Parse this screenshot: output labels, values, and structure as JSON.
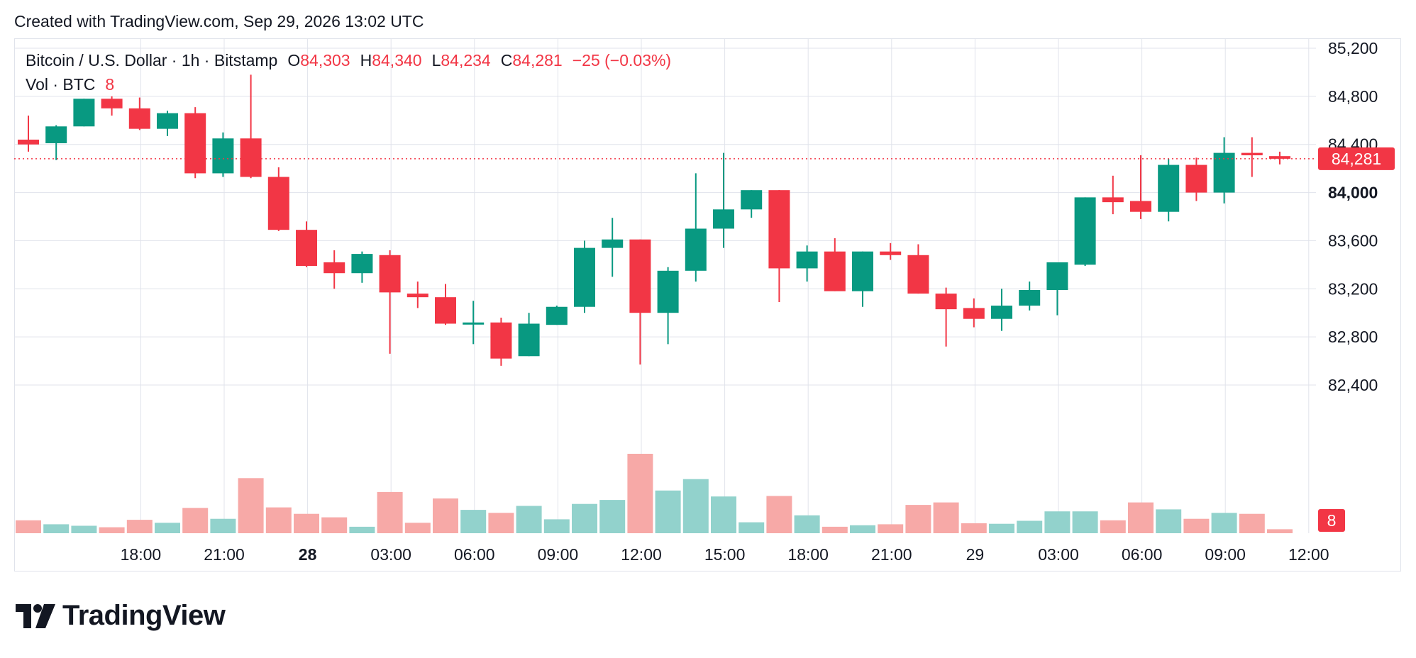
{
  "header": {
    "created_with": "Created with TradingView.com, Sep 29, 2026 13:02 UTC"
  },
  "legend": {
    "symbol": "Bitcoin / U.S. Dollar · 1h · Bitstamp",
    "o_label": "O",
    "open": "84,303",
    "h_label": "H",
    "high": "84,340",
    "l_label": "L",
    "low": "84,234",
    "c_label": "C",
    "close": "84,281",
    "change": "−25 (−0.03%)",
    "vol_label": "Vol · BTC",
    "vol_value": "8"
  },
  "price_tag": "84,281",
  "vol_tag": "8",
  "logo": {
    "text": "TradingView"
  },
  "colors": {
    "up": "#089981",
    "down": "#f23645",
    "up_vol": "#92d2cc",
    "down_vol": "#f7a9a7",
    "grid": "#e0e3eb"
  },
  "chart_data": {
    "type": "candlestick",
    "title": "Bitcoin / U.S. Dollar · 1h · Bitstamp",
    "y_range": [
      82300,
      85250
    ],
    "y_ticks": [
      "85,200",
      "84,800",
      "84,400",
      "84,000",
      "83,600",
      "83,200",
      "82,800",
      "82,400"
    ],
    "y_tick_values": [
      85200,
      84800,
      84400,
      84000,
      83600,
      83200,
      82800,
      82400
    ],
    "bold_tick": "84,000",
    "x_ticks": [
      {
        "index": 2,
        "label": "18:00",
        "bold": false
      },
      {
        "index": 5,
        "label": "21:00",
        "bold": false
      },
      {
        "index": 8,
        "label": "28",
        "bold": true
      },
      {
        "index": 11,
        "label": "03:00",
        "bold": false
      },
      {
        "index": 14,
        "label": "06:00",
        "bold": false
      },
      {
        "index": 17,
        "label": "09:00",
        "bold": false
      },
      {
        "index": 20,
        "label": "12:00",
        "bold": false
      },
      {
        "index": 23,
        "label": "15:00",
        "bold": false
      },
      {
        "index": 26,
        "label": "18:00",
        "bold": false
      },
      {
        "index": 29,
        "label": "21:00",
        "bold": false
      },
      {
        "index": 32,
        "label": "29",
        "bold": false
      },
      {
        "index": 35,
        "label": "03:00",
        "bold": false
      },
      {
        "index": 38,
        "label": "06:00",
        "bold": false
      },
      {
        "index": 41,
        "label": "09:00",
        "bold": false
      },
      {
        "index": 44,
        "label": "12:00",
        "bold": false
      }
    ],
    "last_price": 84281,
    "candles": [
      {
        "o": 84440,
        "h": 84640,
        "l": 84340,
        "c": 84400
      },
      {
        "o": 84410,
        "h": 84560,
        "l": 84270,
        "c": 84550
      },
      {
        "o": 84550,
        "h": 84780,
        "l": 84550,
        "c": 84780
      },
      {
        "o": 84780,
        "h": 84800,
        "l": 84640,
        "c": 84700
      },
      {
        "o": 84700,
        "h": 84790,
        "l": 84520,
        "c": 84530
      },
      {
        "o": 84530,
        "h": 84680,
        "l": 84470,
        "c": 84660
      },
      {
        "o": 84660,
        "h": 84710,
        "l": 84120,
        "c": 84160
      },
      {
        "o": 84160,
        "h": 84500,
        "l": 84130,
        "c": 84450
      },
      {
        "o": 84450,
        "h": 84980,
        "l": 84120,
        "c": 84130
      },
      {
        "o": 84130,
        "h": 84210,
        "l": 83680,
        "c": 83690
      },
      {
        "o": 83690,
        "h": 83760,
        "l": 83380,
        "c": 83390
      },
      {
        "o": 83420,
        "h": 83520,
        "l": 83200,
        "c": 83330
      },
      {
        "o": 83330,
        "h": 83510,
        "l": 83250,
        "c": 83490
      },
      {
        "o": 83480,
        "h": 83520,
        "l": 82660,
        "c": 83170
      },
      {
        "o": 83160,
        "h": 83260,
        "l": 83040,
        "c": 83130
      },
      {
        "o": 83130,
        "h": 83240,
        "l": 82900,
        "c": 82910
      },
      {
        "o": 82920,
        "h": 83100,
        "l": 82740,
        "c": 82920
      },
      {
        "o": 82920,
        "h": 82960,
        "l": 82560,
        "c": 82620
      },
      {
        "o": 82640,
        "h": 83000,
        "l": 82640,
        "c": 82910
      },
      {
        "o": 82900,
        "h": 83060,
        "l": 82900,
        "c": 83050
      },
      {
        "o": 83050,
        "h": 83600,
        "l": 83000,
        "c": 83540
      },
      {
        "o": 83540,
        "h": 83790,
        "l": 83300,
        "c": 83610
      },
      {
        "o": 83610,
        "h": 83610,
        "l": 82570,
        "c": 83000
      },
      {
        "o": 83000,
        "h": 83380,
        "l": 82740,
        "c": 83350
      },
      {
        "o": 83350,
        "h": 84160,
        "l": 83260,
        "c": 83700
      },
      {
        "o": 83700,
        "h": 84330,
        "l": 83540,
        "c": 83860
      },
      {
        "o": 83860,
        "h": 84020,
        "l": 83790,
        "c": 84020
      },
      {
        "o": 84020,
        "h": 84020,
        "l": 83090,
        "c": 83370
      },
      {
        "o": 83370,
        "h": 83560,
        "l": 83260,
        "c": 83510
      },
      {
        "o": 83510,
        "h": 83620,
        "l": 83180,
        "c": 83180
      },
      {
        "o": 83180,
        "h": 83510,
        "l": 83050,
        "c": 83510
      },
      {
        "o": 83510,
        "h": 83580,
        "l": 83440,
        "c": 83480
      },
      {
        "o": 83480,
        "h": 83570,
        "l": 83160,
        "c": 83160
      },
      {
        "o": 83160,
        "h": 83210,
        "l": 82720,
        "c": 83030
      },
      {
        "o": 83040,
        "h": 83120,
        "l": 82880,
        "c": 82950
      },
      {
        "o": 82950,
        "h": 83200,
        "l": 82850,
        "c": 83060
      },
      {
        "o": 83060,
        "h": 83260,
        "l": 83020,
        "c": 83190
      },
      {
        "o": 83190,
        "h": 83400,
        "l": 82980,
        "c": 83420
      },
      {
        "o": 83400,
        "h": 83960,
        "l": 83390,
        "c": 83960
      },
      {
        "o": 83960,
        "h": 84140,
        "l": 83820,
        "c": 83920
      },
      {
        "o": 83930,
        "h": 84310,
        "l": 83780,
        "c": 83840
      },
      {
        "o": 83840,
        "h": 84280,
        "l": 83760,
        "c": 84230
      },
      {
        "o": 84230,
        "h": 84290,
        "l": 83930,
        "c": 84000
      },
      {
        "o": 84000,
        "h": 84460,
        "l": 83910,
        "c": 84330
      },
      {
        "o": 84330,
        "h": 84460,
        "l": 84130,
        "c": 84310
      },
      {
        "o": 84303,
        "h": 84340,
        "l": 84234,
        "c": 84281
      }
    ],
    "volume": [
      26,
      18,
      15,
      12,
      27,
      21,
      51,
      29,
      111,
      52,
      39,
      32,
      13,
      83,
      21,
      70,
      47,
      41,
      55,
      28,
      59,
      67,
      160,
      86,
      109,
      74,
      22,
      75,
      36,
      13,
      16,
      18,
      57,
      62,
      20,
      19,
      25,
      44,
      44,
      26,
      62,
      48,
      29,
      41,
      39,
      8
    ],
    "volume_max": 180
  }
}
